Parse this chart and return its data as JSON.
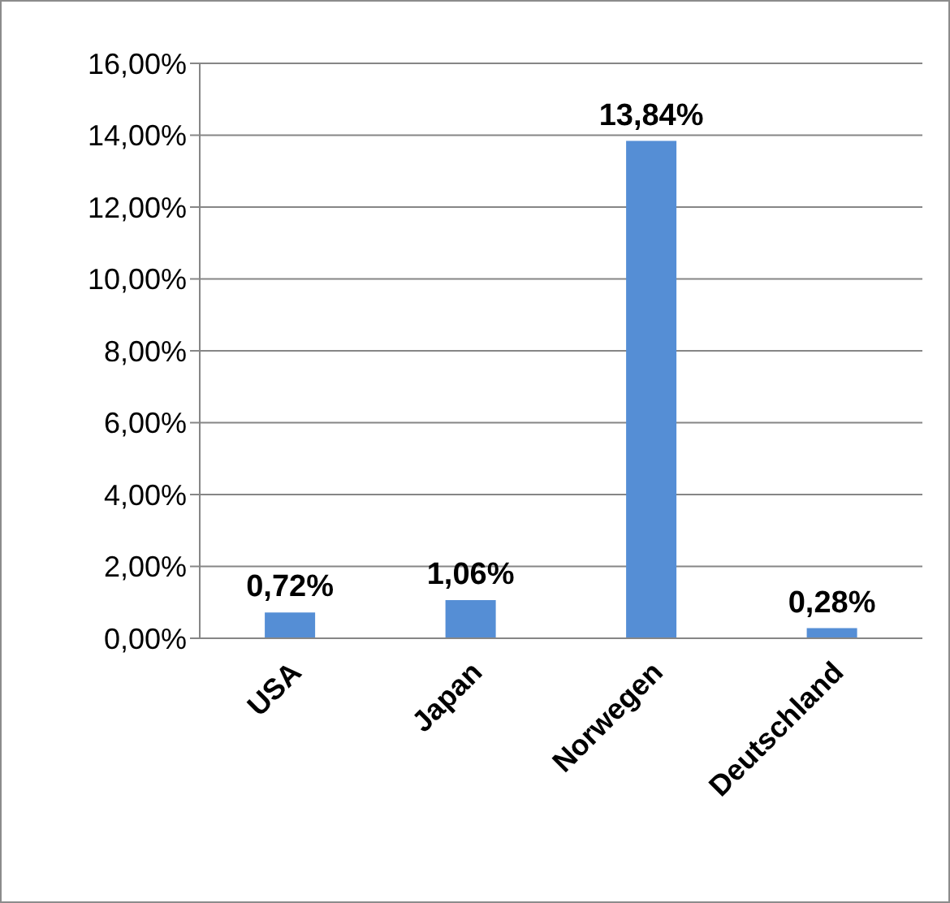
{
  "chart_data": {
    "type": "bar",
    "categories": [
      "USA",
      "Japan",
      "Norwegen",
      "Deutschland"
    ],
    "values": [
      0.72,
      1.06,
      13.84,
      0.28
    ],
    "value_labels": [
      "0,72%",
      "1,06%",
      "13,84%",
      "0,28%"
    ],
    "color": "#558ed5",
    "ylim": [
      0,
      16
    ],
    "yticks": [
      {
        "value": 0,
        "label": "0,00%"
      },
      {
        "value": 2,
        "label": "2,00%"
      },
      {
        "value": 4,
        "label": "4,00%"
      },
      {
        "value": 6,
        "label": "6,00%"
      },
      {
        "value": 8,
        "label": "8,00%"
      },
      {
        "value": 10,
        "label": "10,00%"
      },
      {
        "value": 12,
        "label": "12,00%"
      },
      {
        "value": 14,
        "label": "14,00%"
      },
      {
        "value": 16,
        "label": "16,00%"
      }
    ],
    "grid": "y",
    "legend": false
  }
}
